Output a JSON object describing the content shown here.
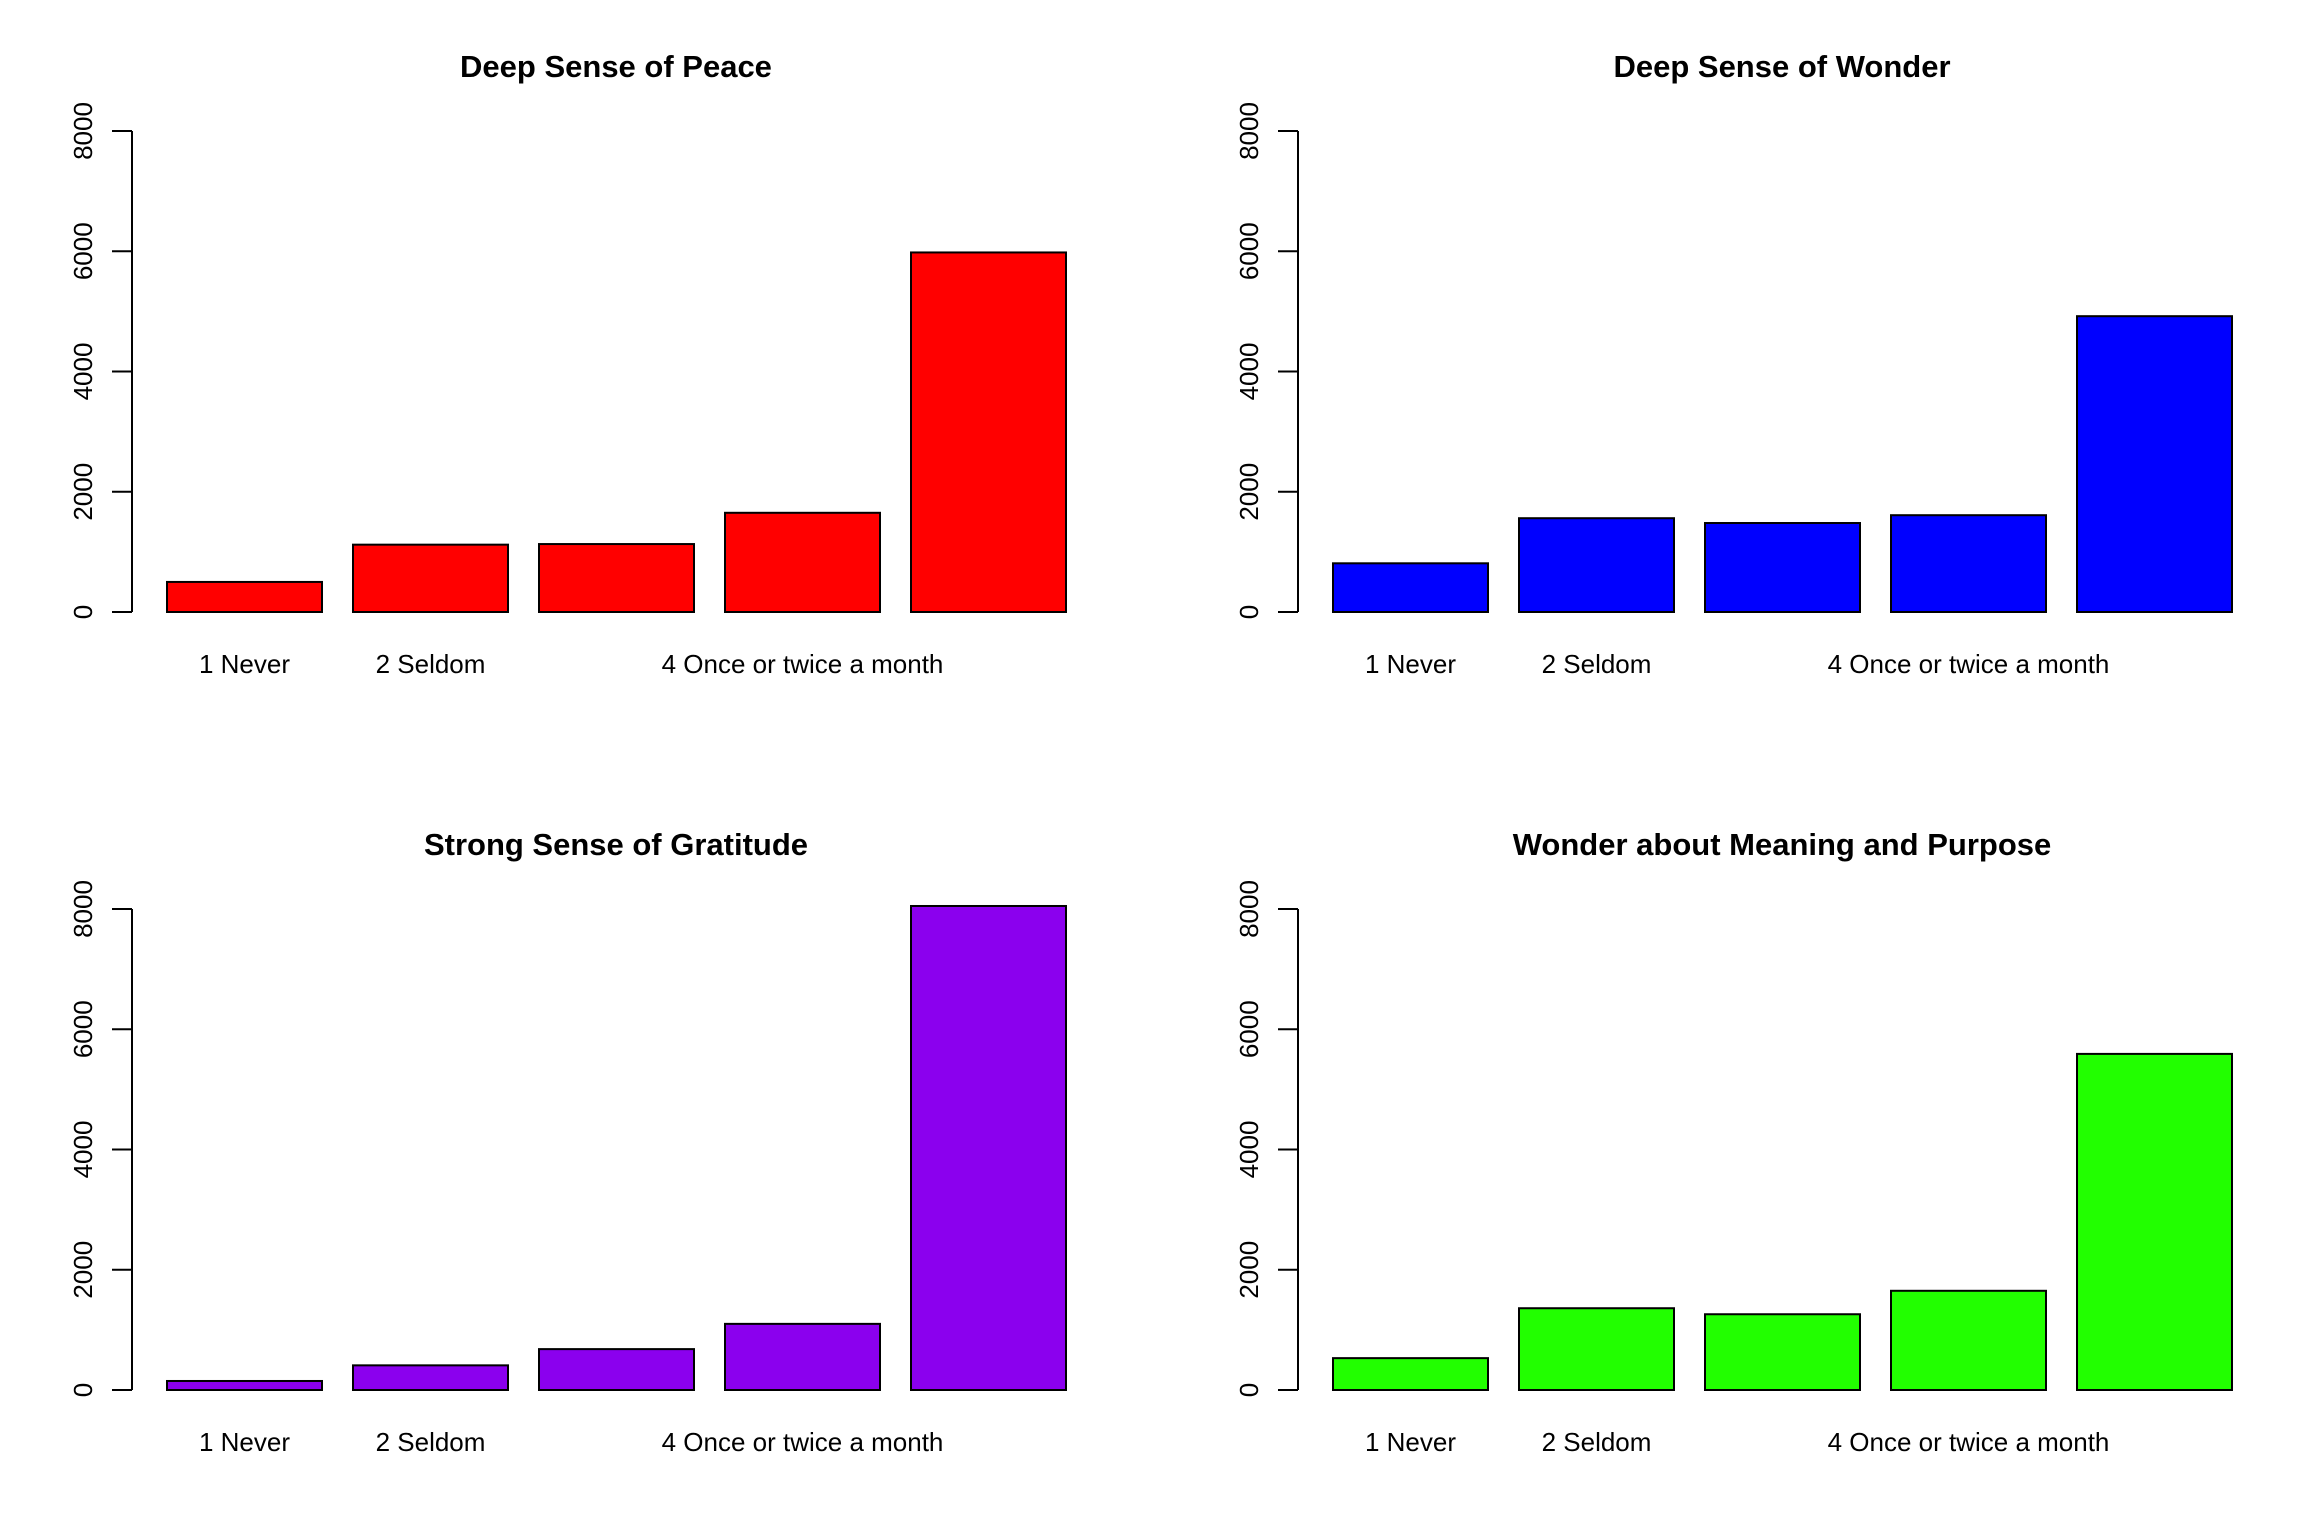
{
  "chart_data": [
    {
      "type": "bar",
      "title": "Deep Sense of Peace",
      "color": "#ff0000",
      "categories": [
        "1 Never",
        "2 Seldom",
        "",
        "4 Once or twice a month",
        ""
      ],
      "values": [
        500,
        1120,
        1130,
        1650,
        5980
      ],
      "ylim": [
        0,
        8000
      ],
      "yticks": [
        "0",
        "2000",
        "4000",
        "6000",
        "8000"
      ],
      "xlabel": "",
      "ylabel": "",
      "grid": false,
      "legend": "none"
    },
    {
      "type": "bar",
      "title": "Deep Sense of Wonder",
      "color": "#0000ff",
      "categories": [
        "1 Never",
        "2 Seldom",
        "",
        "4 Once or twice a month",
        ""
      ],
      "values": [
        810,
        1560,
        1480,
        1610,
        4920
      ],
      "ylim": [
        0,
        8000
      ],
      "yticks": [
        "0",
        "2000",
        "4000",
        "6000",
        "8000"
      ],
      "xlabel": "",
      "ylabel": "",
      "grid": false,
      "legend": "none"
    },
    {
      "type": "bar",
      "title": "Strong Sense of Gratitude",
      "color": "#8b00ee",
      "categories": [
        "1 Never",
        "2 Seldom",
        "",
        "4 Once or twice a month",
        ""
      ],
      "values": [
        150,
        410,
        680,
        1100,
        8050
      ],
      "ylim": [
        0,
        8000
      ],
      "yticks": [
        "0",
        "2000",
        "4000",
        "6000",
        "8000"
      ],
      "xlabel": "",
      "ylabel": "",
      "grid": false,
      "legend": "none"
    },
    {
      "type": "bar",
      "title": "Wonder about Meaning and Purpose",
      "color": "#22ff00",
      "categories": [
        "1 Never",
        "2 Seldom",
        "",
        "4 Once or twice a month",
        ""
      ],
      "values": [
        530,
        1360,
        1260,
        1650,
        5590
      ],
      "ylim": [
        0,
        8000
      ],
      "yticks": [
        "0",
        "2000",
        "4000",
        "6000",
        "8000"
      ],
      "xlabel": "",
      "ylabel": "",
      "grid": false,
      "legend": "none"
    }
  ]
}
